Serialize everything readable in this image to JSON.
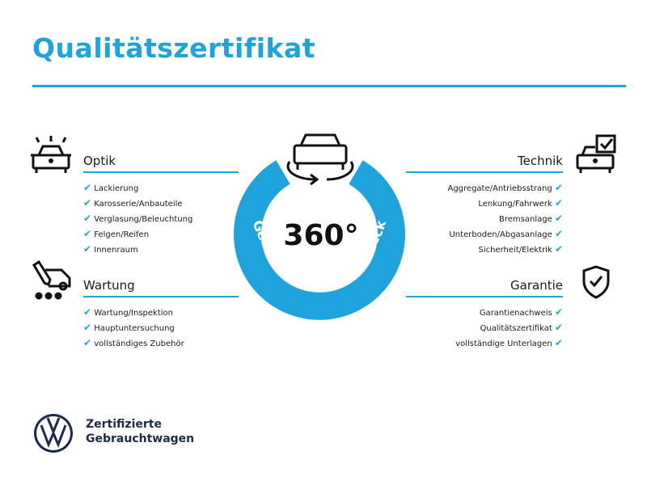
{
  "title": "Qualitätszertifikat",
  "center": {
    "degrees": "360°",
    "arc_text": "Gebrauchtwagen-Check"
  },
  "sections": {
    "optik": {
      "title": "Optik",
      "items": [
        "Lackierung",
        "Karosserie/Anbauteile",
        "Verglasung/Beleuchtung",
        "Felgen/Reifen",
        "Innenraum"
      ]
    },
    "wartung": {
      "title": "Wartung",
      "items": [
        "Wartung/Inspektion",
        "Hauptuntersuchung",
        "vollständiges Zubehör"
      ]
    },
    "technik": {
      "title": "Technik",
      "items": [
        "Aggregate/Antriebsstrang",
        "Lenkung/Fahrwerk",
        "Bremsanlage",
        "Unterboden/Abgasanlage",
        "Sicherheit/Elektrik"
      ]
    },
    "garantie": {
      "title": "Garantie",
      "items": [
        "Garantienachweis",
        "Qualitätszertifikat",
        "vollständige Unterlagen"
      ]
    }
  },
  "check": "✔",
  "brand": {
    "line1": "Zertifizierte",
    "line2": "Gebrauchtwagen"
  },
  "colors": {
    "accent": "#1ea3dc",
    "text": "#1a1a1a",
    "brand": "#1d2a4a"
  }
}
